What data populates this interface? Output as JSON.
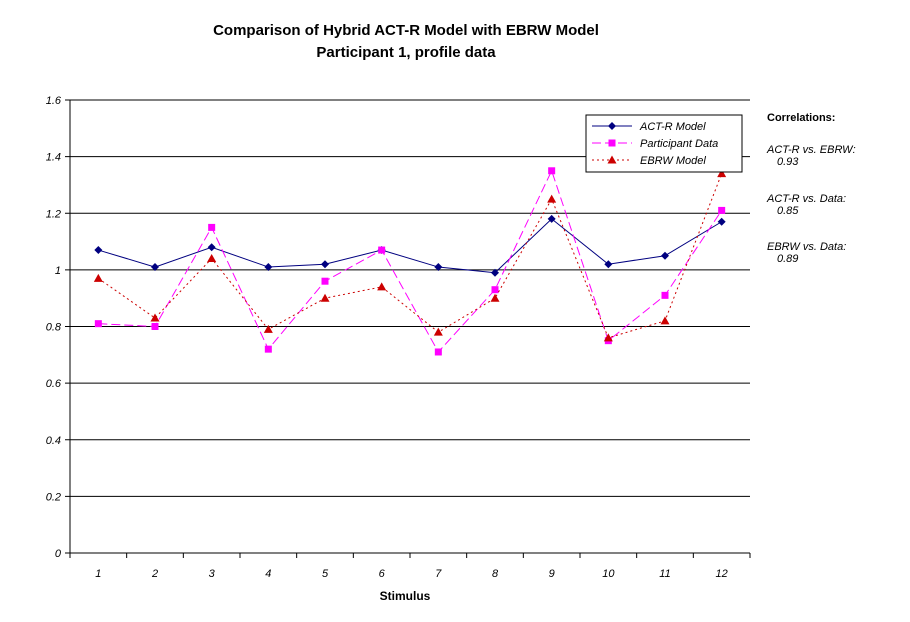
{
  "chart_data": {
    "type": "line",
    "title": "Comparison of Hybrid ACT-R Model with EBRW Model",
    "subtitle": "Participant 1, profile data",
    "xlabel": "Stimulus",
    "ylabel": "",
    "x": [
      "1",
      "2",
      "3",
      "4",
      "5",
      "6",
      "7",
      "8",
      "9",
      "10",
      "11",
      "12"
    ],
    "ylim": [
      0,
      1.6
    ],
    "yticks": [
      "0",
      "0.2",
      "0.4",
      "0.6",
      "0.8",
      "1",
      "1.2",
      "1.4",
      "1.6"
    ],
    "grid": true,
    "legend_position": "top-right",
    "series": [
      {
        "name": "ACT-R Model",
        "color": "#000080",
        "marker": "diamond",
        "dash": "solid",
        "values": [
          1.07,
          1.01,
          1.08,
          1.01,
          1.02,
          1.07,
          1.01,
          0.99,
          1.18,
          1.02,
          1.05,
          1.17
        ]
      },
      {
        "name": "Participant Data",
        "color": "#ff00ff",
        "marker": "square",
        "dash": "dashed",
        "values": [
          0.81,
          0.8,
          1.15,
          0.72,
          0.96,
          1.07,
          0.71,
          0.93,
          1.35,
          0.75,
          0.91,
          1.21
        ]
      },
      {
        "name": "EBRW Model",
        "color": "#cc0000",
        "marker": "triangle",
        "dash": "dotted",
        "values": [
          0.97,
          0.83,
          1.04,
          0.79,
          0.9,
          0.94,
          0.78,
          0.9,
          1.25,
          0.76,
          0.82,
          1.34
        ]
      }
    ]
  },
  "correlations": {
    "heading": "Correlations:",
    "items": [
      {
        "label": "ACT-R vs. EBRW:",
        "value": "0.93"
      },
      {
        "label": "ACT-R vs. Data:",
        "value": "0.85"
      },
      {
        "label": "EBRW vs. Data:",
        "value": "0.89"
      }
    ]
  }
}
